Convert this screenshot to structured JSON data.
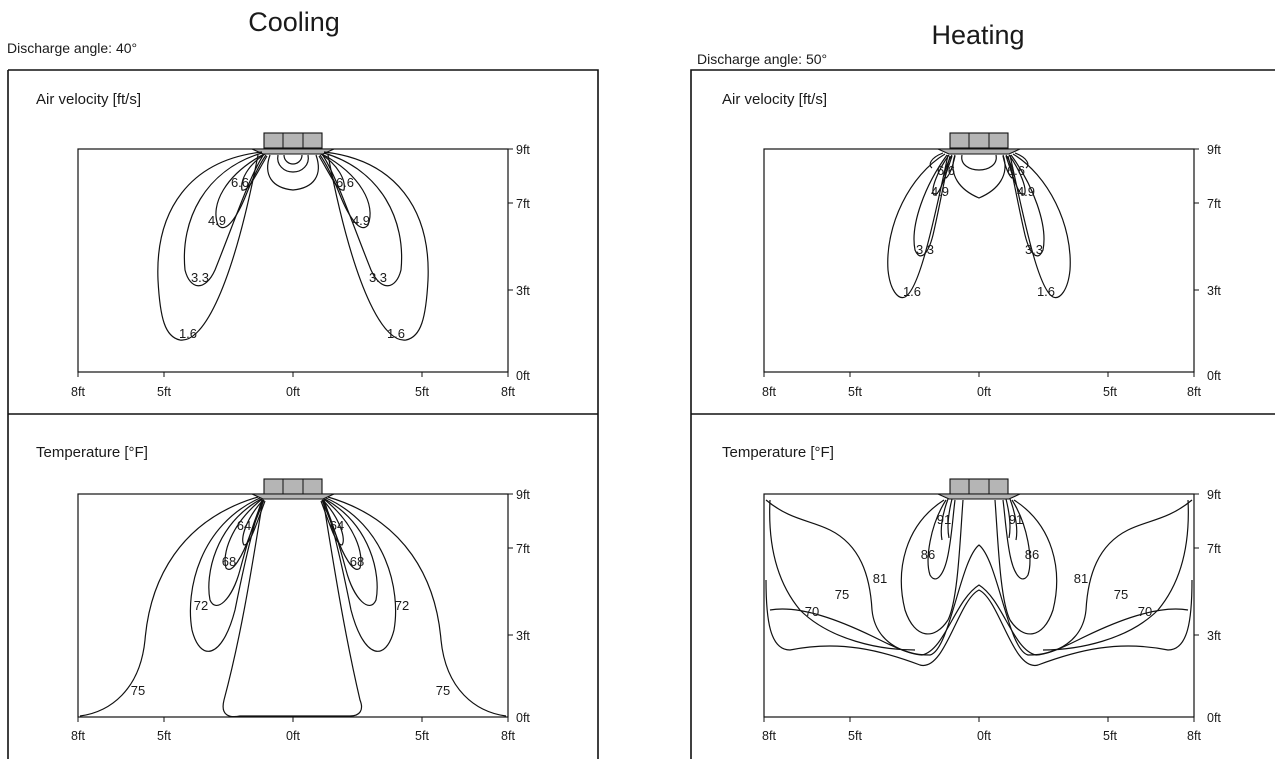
{
  "cooling": {
    "title": "Cooling",
    "angle": "Discharge angle: 40°",
    "velocity": {
      "title": "Air velocity [ft/s]",
      "labels_left": [
        "6.6",
        "4.9",
        "3.3",
        "1.6"
      ],
      "labels_right": [
        "6.6",
        "4.9",
        "3.3",
        "1.6"
      ]
    },
    "temperature": {
      "title": "Temperature [°F]",
      "labels_left": [
        "64",
        "68",
        "72",
        "75"
      ],
      "labels_right": [
        "64",
        "68",
        "72",
        "75"
      ]
    }
  },
  "heating": {
    "title": "Heating",
    "angle": "Discharge angle: 50°",
    "velocity": {
      "title": "Air velocity [ft/s]",
      "labels_left": [
        "6.6",
        "4.9",
        "3.3",
        "1.6"
      ],
      "labels_right": [
        "6.6",
        "4.9",
        "3.3",
        "1.6"
      ]
    },
    "temperature": {
      "title": "Temperature [°F]",
      "labels_left": [
        "91",
        "86",
        "81",
        "75",
        "70"
      ],
      "labels_right": [
        "91",
        "86",
        "81",
        "75",
        "70"
      ]
    }
  },
  "axes": {
    "x_ticks": [
      "8ft",
      "5ft",
      "0ft",
      "5ft",
      "8ft"
    ],
    "y_ticks": [
      "9ft",
      "7ft",
      "3ft",
      "0ft"
    ]
  }
}
